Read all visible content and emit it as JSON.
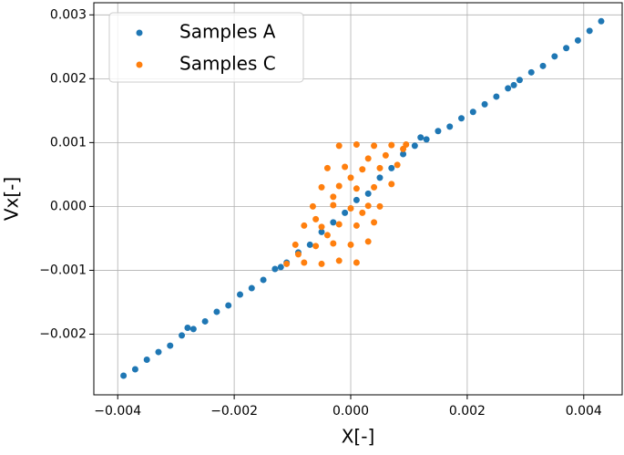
{
  "chart_data": {
    "type": "scatter",
    "x_label": "X[-]",
    "y_label": "Vx[-]",
    "xlim": [
      -0.00441,
      0.00466
    ],
    "ylim": [
      -0.00295,
      0.00319
    ],
    "xticks": [
      {
        "value": -0.004,
        "label": "−0.004"
      },
      {
        "value": -0.002,
        "label": "−0.002"
      },
      {
        "value": 0,
        "label": "0.000"
      },
      0.002,
      0.004
    ],
    "yticks": [
      {
        "value": -0.002,
        "label": "−0.002"
      },
      {
        "value": -0.001,
        "label": "−0.001"
      },
      {
        "value": 0,
        "label": "0.000"
      },
      0.001,
      0.002,
      0.003
    ],
    "grid": true,
    "legend": "upper left",
    "series": [
      {
        "name": "Samples A",
        "color": "#1f77b4",
        "x": [
          -0.0039,
          -0.0037,
          -0.0035,
          -0.0033,
          -0.0031,
          -0.0029,
          -0.0028,
          -0.0027,
          -0.0025,
          -0.0023,
          -0.0021,
          -0.0019,
          -0.0017,
          -0.0015,
          -0.0013,
          -0.0012,
          -0.0011,
          -0.0009,
          -0.0007,
          -0.0005,
          -0.0003,
          -0.0001,
          0.0001,
          0.0003,
          0.0005,
          0.0007,
          0.0009,
          0.0011,
          0.0012,
          0.0013,
          0.0015,
          0.0017,
          0.0019,
          0.0021,
          0.0023,
          0.0025,
          0.0027,
          0.0028,
          0.0029,
          0.0031,
          0.0033,
          0.0035,
          0.0037,
          0.0039,
          0.0041,
          0.0043
        ],
        "values": [
          -0.00265,
          -0.00255,
          -0.0024,
          -0.00228,
          -0.00218,
          -0.00202,
          -0.0019,
          -0.00192,
          -0.0018,
          -0.00165,
          -0.00155,
          -0.00138,
          -0.00128,
          -0.00115,
          -0.00098,
          -0.00095,
          -0.00088,
          -0.00072,
          -0.0006,
          -0.0004,
          -0.00025,
          -0.0001,
          0.0001,
          0.0002,
          0.00045,
          0.0006,
          0.00082,
          0.00095,
          0.00108,
          0.00105,
          0.00118,
          0.00125,
          0.00138,
          0.00148,
          0.0016,
          0.00172,
          0.00185,
          0.0019,
          0.00198,
          0.0021,
          0.0022,
          0.00235,
          0.00248,
          0.0026,
          0.00275,
          0.0029
        ]
      },
      {
        "name": "Samples C",
        "color": "#ff7f0e",
        "x": [
          -0.0011,
          -0.0008,
          -0.0005,
          -0.0002,
          0.0001,
          -0.00095,
          -0.0006,
          -0.0003,
          0,
          0.0003,
          -0.0008,
          -0.0005,
          -0.0002,
          0.0001,
          0.0004,
          -0.00065,
          -0.0003,
          0,
          0.0003,
          0.0005,
          -0.0005,
          -0.0002,
          0.0001,
          0.0004,
          0.0007,
          -0.0004,
          -0.0001,
          0.0002,
          0.0005,
          0.0008,
          -0.0002,
          0.0001,
          0.0004,
          0.0007,
          0.00095,
          -0.0009,
          -0.0004,
          0.0002,
          -0.0006,
          0.0,
          0.0006,
          -0.0003,
          0.0003,
          0.0009
        ],
        "values": [
          -0.0009,
          -0.00088,
          -0.0009,
          -0.00085,
          -0.00088,
          -0.0006,
          -0.00062,
          -0.00058,
          -0.0006,
          -0.00055,
          -0.0003,
          -0.00032,
          -0.00028,
          -0.0003,
          -0.00025,
          0,
          2e-05,
          -3e-05,
          1e-05,
          0,
          0.0003,
          0.00032,
          0.00028,
          0.0003,
          0.00035,
          0.0006,
          0.00062,
          0.00058,
          0.0006,
          0.00065,
          0.00095,
          0.00097,
          0.00095,
          0.00096,
          0.00097,
          -0.00075,
          -0.00045,
          -0.0001,
          -0.0002,
          0.00045,
          0.0008,
          0.00015,
          0.00075,
          0.0009
        ]
      }
    ]
  }
}
